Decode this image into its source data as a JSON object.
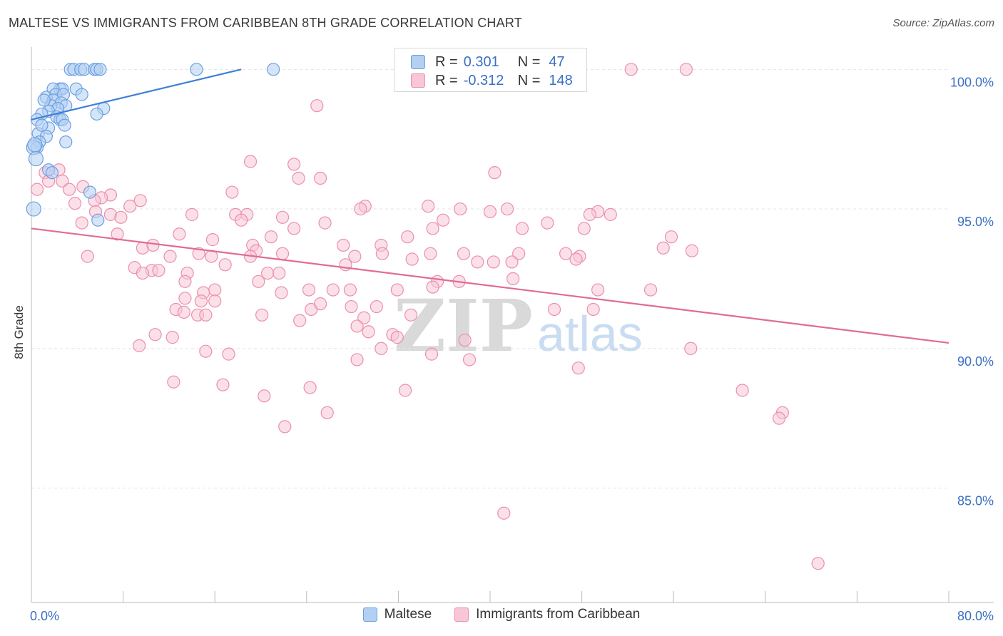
{
  "title": "MALTESE VS IMMIGRANTS FROM CARIBBEAN 8TH GRADE CORRELATION CHART",
  "source": "Source: ZipAtlas.com",
  "watermark": {
    "zip": "ZIP",
    "atlas": "atlas"
  },
  "legend_top": {
    "r_label": "R =",
    "n_label": "N =",
    "rows": [
      {
        "r": "0.301",
        "n": "47"
      },
      {
        "r": "-0.312",
        "n": "148"
      }
    ]
  },
  "legend_bottom": [
    "Maltese",
    "Immigrants from Caribbean"
  ],
  "colors": {
    "blue_fill": "#b3cff2",
    "blue_stroke": "#6b9fe3",
    "blue_line": "#3f7fd6",
    "pink_fill": "#f8c6d6",
    "pink_stroke": "#ea8fae",
    "pink_line": "#e06b96",
    "tick_text": "#3a6fc4"
  },
  "chart_data": {
    "type": "scatter",
    "title": "MALTESE VS IMMIGRANTS FROM CARIBBEAN 8TH GRADE CORRELATION CHART",
    "xlabel": "",
    "ylabel": "8th Grade",
    "xlim": [
      0,
      80
    ],
    "ylim": [
      80.9,
      100.8
    ],
    "x_tick_labels": [
      {
        "value": 0,
        "label": "0.0%"
      },
      {
        "value": 80,
        "label": "80.0%"
      }
    ],
    "y_tick_labels": [
      {
        "value": 100,
        "label": "100.0%"
      },
      {
        "value": 95,
        "label": "95.0%"
      },
      {
        "value": 90,
        "label": "90.0%"
      },
      {
        "value": 85,
        "label": "85.0%"
      }
    ],
    "grid": true,
    "series": [
      {
        "name": "Maltese",
        "r": 0.301,
        "n": 47,
        "trend": [
          [
            0,
            98.2
          ],
          [
            18.3,
            100.0
          ]
        ],
        "points": [
          [
            3.4,
            100
          ],
          [
            3.7,
            100
          ],
          [
            4.3,
            100
          ],
          [
            4.6,
            100
          ],
          [
            5.5,
            100
          ],
          [
            5.7,
            100
          ],
          [
            6,
            100
          ],
          [
            14.4,
            100
          ],
          [
            21.1,
            100
          ],
          [
            2.5,
            99.3
          ],
          [
            2.7,
            99.3
          ],
          [
            3.9,
            99.3
          ],
          [
            1.9,
            99.3
          ],
          [
            2.1,
            99.1
          ],
          [
            1.3,
            99.0
          ],
          [
            2.8,
            99.1
          ],
          [
            4.4,
            99.1
          ],
          [
            1.9,
            98.9
          ],
          [
            2.6,
            98.8
          ],
          [
            3,
            98.7
          ],
          [
            1.7,
            98.7
          ],
          [
            2.3,
            98.6
          ],
          [
            6.3,
            98.6
          ],
          [
            1.5,
            98.5
          ],
          [
            0.9,
            98.4
          ],
          [
            5.7,
            98.4
          ],
          [
            2.2,
            98.3
          ],
          [
            2.5,
            98.2
          ],
          [
            2.7,
            98.2
          ],
          [
            0.5,
            98.2
          ],
          [
            2.9,
            98.0
          ],
          [
            1.5,
            97.9
          ],
          [
            0.6,
            97.7
          ],
          [
            1.3,
            97.6
          ],
          [
            3.0,
            97.4
          ],
          [
            0.7,
            97.4
          ],
          [
            0.5,
            97.2
          ],
          [
            0.2,
            97.2
          ],
          [
            1.5,
            96.4
          ],
          [
            1.8,
            96.3
          ],
          [
            5.1,
            95.6
          ],
          [
            5.8,
            94.6
          ],
          [
            0.2,
            95.0
          ],
          [
            0.3,
            97.3
          ],
          [
            1.1,
            98.9
          ],
          [
            0.9,
            98.0
          ],
          [
            0.4,
            96.8
          ]
        ]
      },
      {
        "name": "Immigrants from Caribbean",
        "r": -0.312,
        "n": 148,
        "trend": [
          [
            0,
            94.3
          ],
          [
            80,
            90.2
          ]
        ],
        "points": [
          [
            52.3,
            100
          ],
          [
            57.1,
            100
          ],
          [
            24.9,
            98.7
          ],
          [
            19.1,
            96.7
          ],
          [
            22.9,
            96.6
          ],
          [
            40.4,
            96.3
          ],
          [
            1.2,
            96.3
          ],
          [
            2.4,
            96.4
          ],
          [
            23.3,
            96.1
          ],
          [
            25.2,
            96.1
          ],
          [
            1.5,
            96.0
          ],
          [
            2.7,
            96.0
          ],
          [
            4.5,
            95.8
          ],
          [
            3.3,
            95.7
          ],
          [
            0.5,
            95.7
          ],
          [
            6.9,
            95.5
          ],
          [
            17.5,
            95.6
          ],
          [
            6.1,
            95.4
          ],
          [
            5.5,
            95.3
          ],
          [
            9.5,
            95.3
          ],
          [
            3.8,
            95.2
          ],
          [
            8.6,
            95.1
          ],
          [
            29.1,
            95.1
          ],
          [
            34.6,
            95.1
          ],
          [
            28.7,
            95.0
          ],
          [
            41.5,
            95.0
          ],
          [
            37.4,
            95.0
          ],
          [
            40.0,
            94.9
          ],
          [
            49.4,
            94.9
          ],
          [
            5.6,
            94.9
          ],
          [
            6.9,
            94.8
          ],
          [
            14.0,
            94.8
          ],
          [
            17.8,
            94.8
          ],
          [
            18.8,
            94.8
          ],
          [
            48.7,
            94.8
          ],
          [
            50.5,
            94.8
          ],
          [
            7.8,
            94.7
          ],
          [
            21.9,
            94.7
          ],
          [
            35.9,
            94.6
          ],
          [
            18.3,
            94.6
          ],
          [
            4.4,
            94.5
          ],
          [
            25.6,
            94.5
          ],
          [
            45.0,
            94.5
          ],
          [
            42.8,
            94.3
          ],
          [
            48.2,
            94.3
          ],
          [
            35.0,
            94.3
          ],
          [
            22.9,
            94.3
          ],
          [
            12.9,
            94.1
          ],
          [
            20.9,
            94.0
          ],
          [
            7.5,
            94.1
          ],
          [
            32.8,
            94.0
          ],
          [
            55.8,
            94.0
          ],
          [
            15.8,
            93.9
          ],
          [
            19.3,
            93.7
          ],
          [
            27.2,
            93.7
          ],
          [
            30.5,
            93.7
          ],
          [
            9.7,
            93.6
          ],
          [
            10.6,
            93.7
          ],
          [
            55.1,
            93.6
          ],
          [
            57.6,
            93.5
          ],
          [
            19.6,
            93.5
          ],
          [
            21.9,
            93.4
          ],
          [
            14.6,
            93.4
          ],
          [
            30.6,
            93.4
          ],
          [
            34.8,
            93.4
          ],
          [
            37.7,
            93.4
          ],
          [
            42.5,
            93.4
          ],
          [
            46.6,
            93.4
          ],
          [
            47.8,
            93.3
          ],
          [
            12.1,
            93.3
          ],
          [
            4.9,
            93.3
          ],
          [
            19.1,
            93.3
          ],
          [
            15.7,
            93.3
          ],
          [
            28.2,
            93.3
          ],
          [
            33.2,
            93.2
          ],
          [
            38.9,
            93.1
          ],
          [
            47.5,
            93.2
          ],
          [
            41.9,
            93.1
          ],
          [
            40.3,
            93.1
          ],
          [
            27.4,
            93.0
          ],
          [
            16.9,
            93.0
          ],
          [
            9.0,
            92.9
          ],
          [
            10.5,
            92.8
          ],
          [
            11.1,
            92.8
          ],
          [
            13.6,
            92.7
          ],
          [
            20.6,
            92.7
          ],
          [
            21.6,
            92.7
          ],
          [
            42.0,
            92.5
          ],
          [
            9.7,
            92.7
          ],
          [
            37.3,
            92.4
          ],
          [
            35.4,
            92.4
          ],
          [
            13.4,
            92.4
          ],
          [
            19.8,
            92.4
          ],
          [
            35.0,
            92.2
          ],
          [
            26.3,
            92.1
          ],
          [
            24.2,
            92.1
          ],
          [
            27.8,
            92.1
          ],
          [
            16.0,
            92.1
          ],
          [
            31.9,
            92.1
          ],
          [
            49.4,
            92.1
          ],
          [
            54.0,
            92.1
          ],
          [
            21.8,
            92.0
          ],
          [
            15.0,
            92.0
          ],
          [
            16.0,
            91.7
          ],
          [
            13.4,
            91.8
          ],
          [
            14.8,
            91.7
          ],
          [
            24.4,
            91.4
          ],
          [
            25.2,
            91.6
          ],
          [
            27.9,
            91.5
          ],
          [
            12.6,
            91.4
          ],
          [
            30.1,
            91.5
          ],
          [
            13.3,
            91.3
          ],
          [
            33.1,
            91.2
          ],
          [
            49.0,
            91.4
          ],
          [
            45.6,
            91.4
          ],
          [
            14.5,
            91.2
          ],
          [
            20.1,
            91.2
          ],
          [
            15.2,
            91.2
          ],
          [
            29.0,
            91.1
          ],
          [
            23.4,
            91.0
          ],
          [
            28.4,
            90.8
          ],
          [
            29.4,
            90.6
          ],
          [
            31.5,
            90.5
          ],
          [
            31.9,
            90.4
          ],
          [
            10.8,
            90.5
          ],
          [
            37.8,
            90.3
          ],
          [
            12.3,
            90.4
          ],
          [
            9.4,
            90.1
          ],
          [
            30.5,
            90.0
          ],
          [
            28.4,
            89.6
          ],
          [
            17.2,
            89.8
          ],
          [
            15.2,
            89.9
          ],
          [
            38.2,
            89.6
          ],
          [
            47.7,
            89.3
          ],
          [
            57.5,
            90.0
          ],
          [
            34.9,
            89.8
          ],
          [
            12.4,
            88.8
          ],
          [
            16.7,
            88.7
          ],
          [
            24.3,
            88.6
          ],
          [
            32.6,
            88.5
          ],
          [
            20.3,
            88.3
          ],
          [
            62.0,
            88.5
          ],
          [
            65.5,
            87.7
          ],
          [
            65.2,
            87.5
          ],
          [
            25.8,
            87.7
          ],
          [
            22.1,
            87.2
          ],
          [
            41.2,
            84.1
          ],
          [
            68.6,
            82.3
          ]
        ]
      }
    ]
  }
}
